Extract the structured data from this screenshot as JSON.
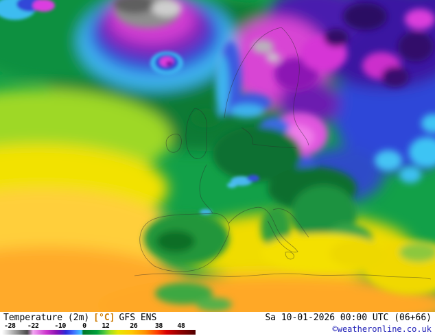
{
  "footer": {
    "parameter": "Temperature (2m)",
    "unit": "[°C]",
    "model": "GFS ENS",
    "datetime": "Sa 10-01-2026 00:00 UTC (06+66)",
    "copyright": "©weatheronline.co.uk",
    "copyright_color": "#2323b8",
    "unit_color": "#cc7a00"
  },
  "legend": {
    "ticks": [
      {
        "label": "-28",
        "pos": 4
      },
      {
        "label": "-22",
        "pos": 16
      },
      {
        "label": "-10",
        "pos": 30
      },
      {
        "label": "0",
        "pos": 42.5
      },
      {
        "label": "12",
        "pos": 53.5
      },
      {
        "label": "26",
        "pos": 68
      },
      {
        "label": "38",
        "pos": 81
      },
      {
        "label": "48",
        "pos": 92.5
      }
    ],
    "stops": [
      [
        0,
        "#ffffff"
      ],
      [
        13,
        "#4a4a4a"
      ],
      [
        16,
        "#f2a6f2"
      ],
      [
        23,
        "#cc33cc"
      ],
      [
        28,
        "#8a14b4"
      ],
      [
        30,
        "#6a14c0"
      ],
      [
        33,
        "#2a2ad8"
      ],
      [
        37,
        "#3f6fff"
      ],
      [
        41,
        "#3fc8ff"
      ],
      [
        42,
        "#007828"
      ],
      [
        49,
        "#00a03c"
      ],
      [
        53,
        "#50c83c"
      ],
      [
        56,
        "#a2e01e"
      ],
      [
        60,
        "#e8e600"
      ],
      [
        67,
        "#ffc800"
      ],
      [
        74,
        "#ff9100"
      ],
      [
        80,
        "#ff4000"
      ],
      [
        85,
        "#d80000"
      ],
      [
        92,
        "#900000"
      ],
      [
        100,
        "#500000"
      ]
    ]
  },
  "map": {
    "description": "2m temperature color field over Europe and North Atlantic",
    "region_colors": {
      "very_cold_glacier_gray": "#8e8e8e",
      "severe_cold_violet": "#32106e",
      "cold_magenta": "#d844d4",
      "cold_blue": "#2f46d8",
      "chill_cyan": "#3cb4f0",
      "mild_green": "#12a048",
      "warm_yellow": "#f0dc00",
      "hot_orange": "#ffa828"
    }
  }
}
